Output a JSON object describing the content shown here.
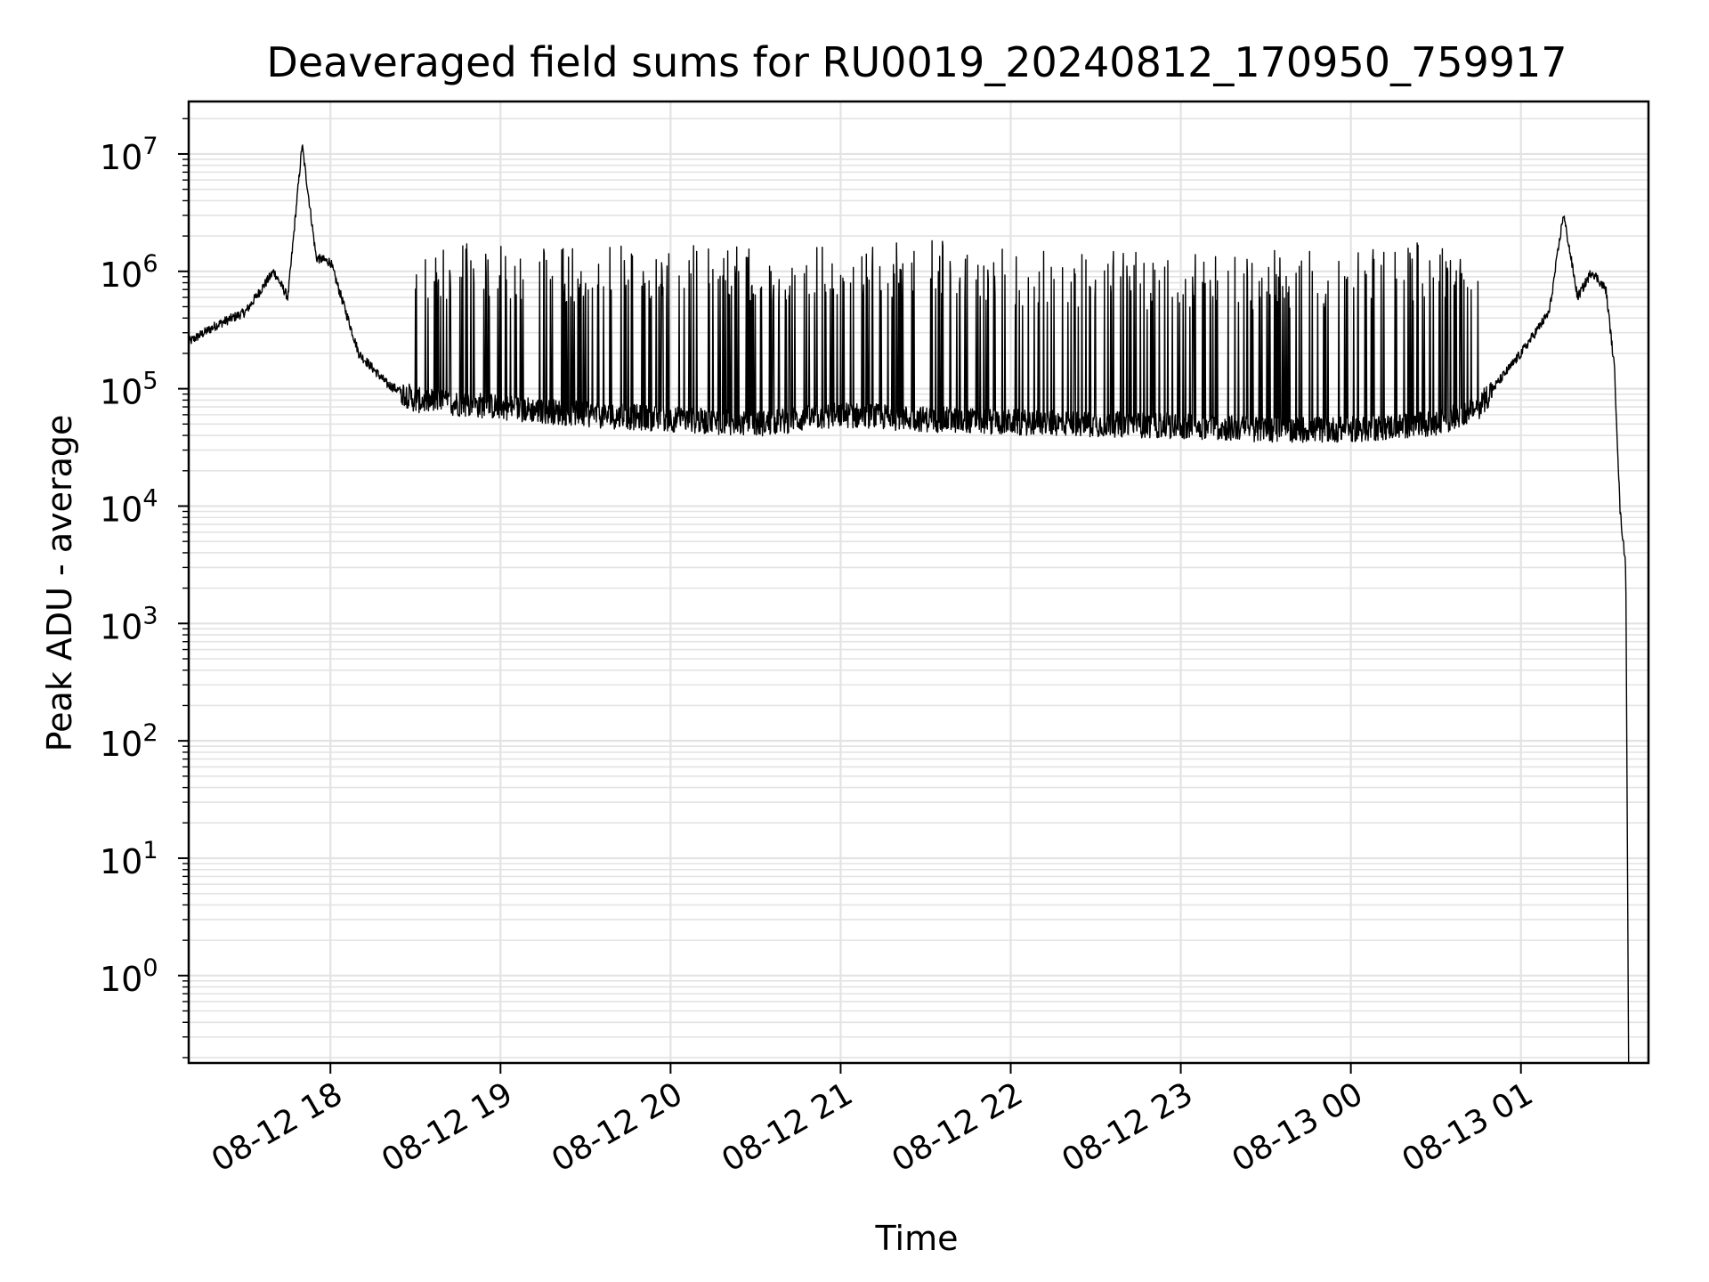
{
  "chart_data": {
    "type": "line",
    "title": "Deaveraged field sums for RU0019_20240812_170950_759917",
    "xlabel": "Time",
    "ylabel": "Peak ADU - average",
    "yscale": "log",
    "grid": true,
    "xlim": [
      "2024-08-12 17:10",
      "2024-08-13 01:45"
    ],
    "xticks": [
      "08-12 18",
      "08-12 19",
      "08-12 20",
      "08-12 21",
      "08-12 22",
      "08-12 23",
      "08-13 00",
      "08-13 01"
    ],
    "yticks": [
      {
        "base": "10",
        "exp": "0",
        "value": 1
      },
      {
        "base": "10",
        "exp": "1",
        "value": 10
      },
      {
        "base": "10",
        "exp": "2",
        "value": 100
      },
      {
        "base": "10",
        "exp": "3",
        "value": 1000
      },
      {
        "base": "10",
        "exp": "4",
        "value": 10000
      },
      {
        "base": "10",
        "exp": "5",
        "value": 100000
      },
      {
        "base": "10",
        "exp": "6",
        "value": 1000000
      },
      {
        "base": "10",
        "exp": "7",
        "value": 10000000
      }
    ],
    "ylim": [
      0.18,
      28000000
    ],
    "line_color": "#000000",
    "series": [
      {
        "x": [
          "2024-08-12 17:10",
          "2024-08-12 17:20",
          "2024-08-12 17:30",
          "2024-08-12 17:40",
          "2024-08-12 17:45",
          "2024-08-12 17:50",
          "2024-08-12 17:55",
          "2024-08-12 18:00",
          "2024-08-12 18:10",
          "2024-08-12 18:20",
          "2024-08-12 18:30",
          "2024-08-12 19:00",
          "2024-08-12 19:30",
          "2024-08-12 20:00",
          "2024-08-12 20:30",
          "2024-08-12 21:00",
          "2024-08-12 21:30",
          "2024-08-12 22:00",
          "2024-08-12 22:30",
          "2024-08-12 23:00",
          "2024-08-12 23:30",
          "2024-08-13 00:00",
          "2024-08-13 00:30",
          "2024-08-13 00:45",
          "2024-08-13 01:00",
          "2024-08-13 01:10",
          "2024-08-13 01:15",
          "2024-08-13 01:20",
          "2024-08-13 01:25",
          "2024-08-13 01:30",
          "2024-08-13 01:33",
          "2024-08-13 01:35",
          "2024-08-13 01:37",
          "2024-08-13 01:38"
        ],
        "y": [
          250000,
          350000,
          450000,
          1000000,
          600000,
          12000000,
          1300000,
          1200000,
          200000,
          110000,
          80000,
          70000,
          60000,
          55000,
          50000,
          60000,
          55000,
          52000,
          50000,
          48000,
          45000,
          45000,
          50000,
          70000,
          200000,
          450000,
          3100000,
          600000,
          1000000,
          700000,
          150000,
          9000,
          3000,
          0.18
        ],
        "spikes": [
          {
            "x": "2024-08-12 18:30",
            "y": 1800000
          },
          {
            "x": "2024-08-12 19:00",
            "y": 1700000
          },
          {
            "x": "2024-08-12 19:30",
            "y": 1600000
          },
          {
            "x": "2024-08-12 20:00",
            "y": 1700000
          },
          {
            "x": "2024-08-12 20:30",
            "y": 1700000
          },
          {
            "x": "2024-08-12 21:00",
            "y": 1800000
          },
          {
            "x": "2024-08-12 21:30",
            "y": 1900000
          },
          {
            "x": "2024-08-12 22:00",
            "y": 1600000
          },
          {
            "x": "2024-08-12 22:30",
            "y": 1500000
          },
          {
            "x": "2024-08-12 23:00",
            "y": 1400000
          },
          {
            "x": "2024-08-12 23:30",
            "y": 1500000
          },
          {
            "x": "2024-08-13 00:00",
            "y": 1600000
          },
          {
            "x": "2024-08-13 00:30",
            "y": 1800000
          },
          {
            "x": "2024-08-13 00:45",
            "y": 1800000
          }
        ]
      }
    ]
  }
}
